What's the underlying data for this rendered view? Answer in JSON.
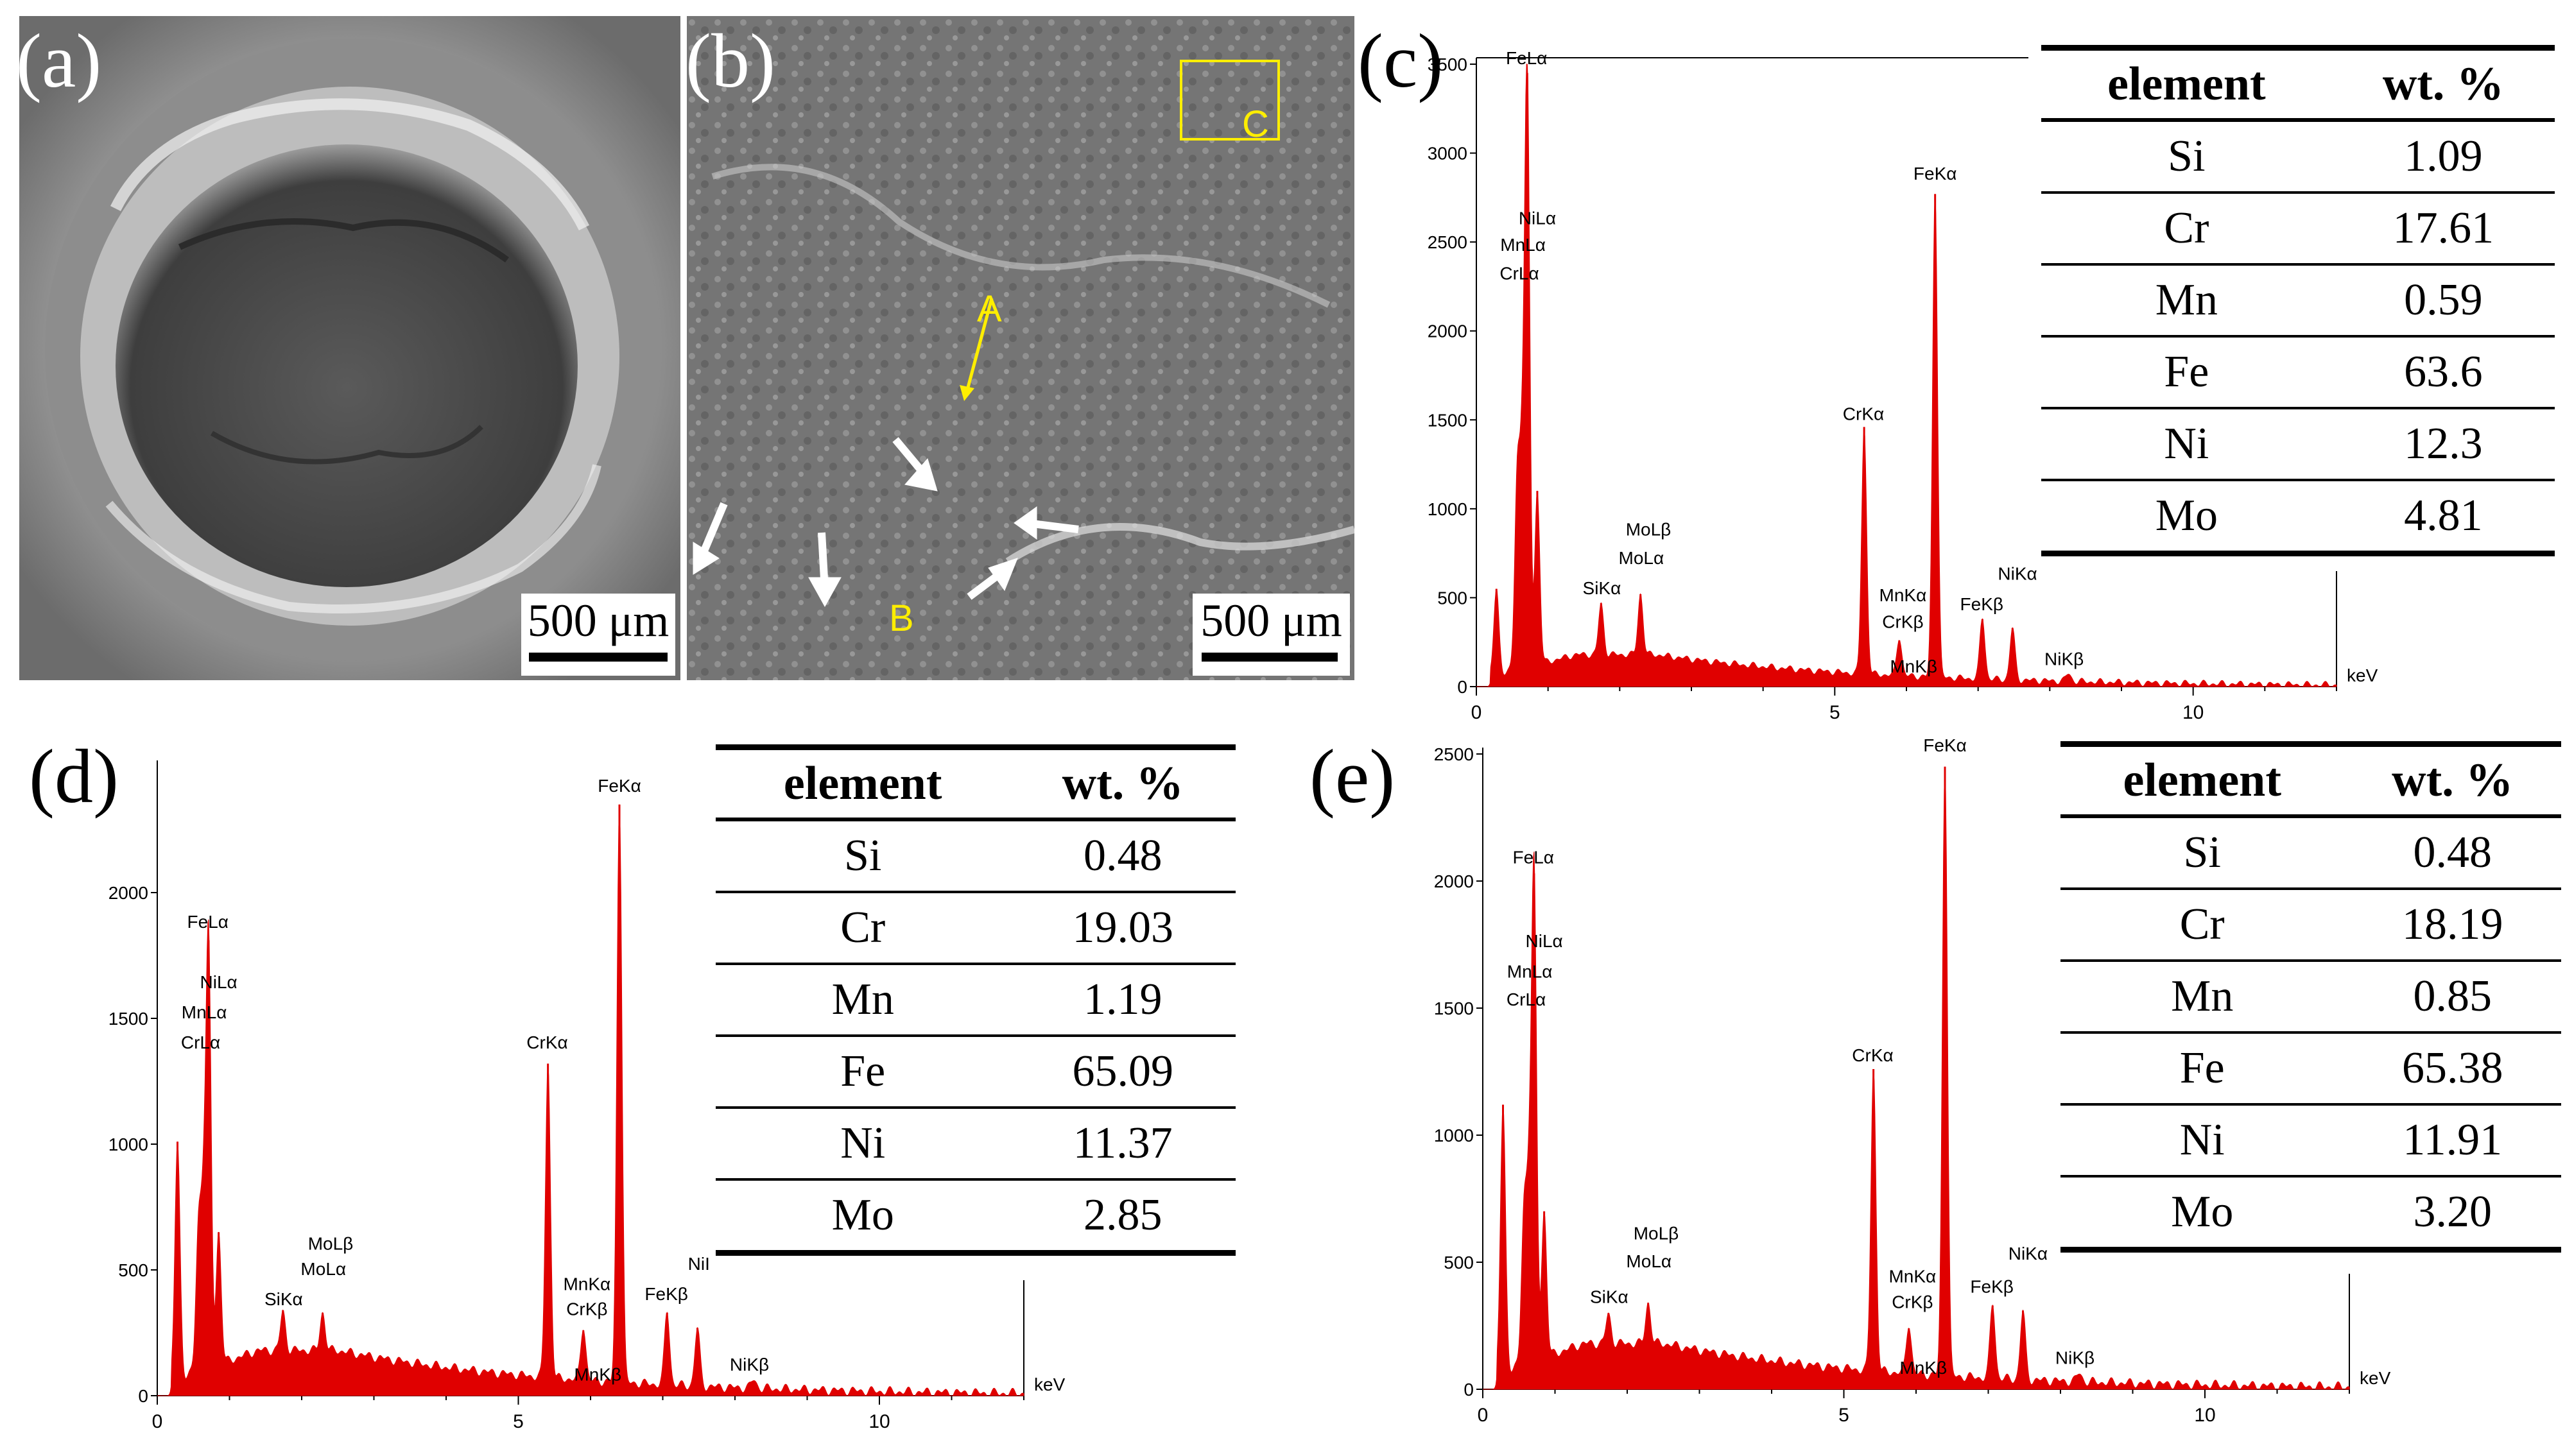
{
  "panels": {
    "a": {
      "letter": "(a)",
      "scale": "500 μm"
    },
    "b": {
      "letter": "(b)",
      "scale": "500 μm",
      "labels": {
        "A": "A",
        "B": "B",
        "C": "C"
      }
    },
    "c": {
      "letter": "(c)"
    },
    "d": {
      "letter": "(d)"
    },
    "e": {
      "letter": "(e)"
    }
  },
  "colors": {
    "spectrum": "#e00000",
    "annotation": "#ffee00",
    "axis": "#000000"
  },
  "tables": [
    {
      "header": {
        "element": "element",
        "wt": "wt. %"
      },
      "rows": [
        [
          "Si",
          "1.09"
        ],
        [
          "Cr",
          "17.61"
        ],
        [
          "Mn",
          "0.59"
        ],
        [
          "Fe",
          "63.6"
        ],
        [
          "Ni",
          "12.3"
        ],
        [
          "Mo",
          "4.81"
        ]
      ]
    },
    {
      "header": {
        "element": "element",
        "wt": "wt. %"
      },
      "rows": [
        [
          "Si",
          "0.48"
        ],
        [
          "Cr",
          "19.03"
        ],
        [
          "Mn",
          "1.19"
        ],
        [
          "Fe",
          "65.09"
        ],
        [
          "Ni",
          "11.37"
        ],
        [
          "Mo",
          "2.85"
        ]
      ]
    },
    {
      "header": {
        "element": "element",
        "wt": "wt. %"
      },
      "rows": [
        [
          "Si",
          "0.48"
        ],
        [
          "Cr",
          "18.19"
        ],
        [
          "Mn",
          "0.85"
        ],
        [
          "Fe",
          "65.38"
        ],
        [
          "Ni",
          "11.91"
        ],
        [
          "Mo",
          "3.20"
        ]
      ]
    }
  ],
  "chart_data": [
    {
      "type": "area",
      "panel": "c",
      "xlabel": "keV",
      "xlim": [
        0,
        12
      ],
      "ylim": [
        0,
        3500
      ],
      "xticks": [
        0,
        5,
        10
      ],
      "yticks": [
        0,
        500,
        1000,
        1500,
        2000,
        2500,
        3000,
        3500
      ],
      "peaks": [
        {
          "x": 0.28,
          "y": 550
        },
        {
          "x": 0.57,
          "y": 1150
        },
        {
          "x": 0.64,
          "y": 1150
        },
        {
          "x": 0.71,
          "y": 3450
        },
        {
          "x": 0.85,
          "y": 1100
        },
        {
          "x": 1.74,
          "y": 470
        },
        {
          "x": 2.29,
          "y": 520
        },
        {
          "x": 5.41,
          "y": 1460
        },
        {
          "x": 5.9,
          "y": 260
        },
        {
          "x": 6.4,
          "y": 2770
        },
        {
          "x": 7.06,
          "y": 380
        },
        {
          "x": 7.48,
          "y": 330
        },
        {
          "x": 8.26,
          "y": 70
        }
      ],
      "annotations": [
        {
          "text": "FeLα",
          "x": 0.7,
          "y": 3500
        },
        {
          "text": "NiLα",
          "x": 0.85,
          "y": 2600
        },
        {
          "text": "MnLα",
          "x": 0.65,
          "y": 2450
        },
        {
          "text": "CrLα",
          "x": 0.6,
          "y": 2290
        },
        {
          "text": "MoLβ",
          "x": 2.4,
          "y": 850
        },
        {
          "text": "MoLα",
          "x": 2.3,
          "y": 690
        },
        {
          "text": "SiKα",
          "x": 1.75,
          "y": 520
        },
        {
          "text": "CrKα",
          "x": 5.4,
          "y": 1500
        },
        {
          "text": "FeKα",
          "x": 6.4,
          "y": 2850
        },
        {
          "text": "MnKα",
          "x": 5.95,
          "y": 480
        },
        {
          "text": "CrKβ",
          "x": 5.95,
          "y": 330
        },
        {
          "text": "MnKβ",
          "x": 6.1,
          "y": 80
        },
        {
          "text": "FeKβ",
          "x": 7.05,
          "y": 430
        },
        {
          "text": "NiKα",
          "x": 7.55,
          "y": 600
        },
        {
          "text": "NiKβ",
          "x": 8.2,
          "y": 120
        }
      ]
    },
    {
      "type": "area",
      "panel": "d",
      "xlabel": "keV",
      "xlim": [
        0,
        12
      ],
      "ylim": [
        0,
        2500
      ],
      "xticks": [
        0,
        5,
        10
      ],
      "yticks": [
        0,
        500,
        1000,
        1500,
        2000
      ],
      "peaks": [
        {
          "x": 0.28,
          "y": 1010
        },
        {
          "x": 0.57,
          "y": 650
        },
        {
          "x": 0.64,
          "y": 700
        },
        {
          "x": 0.71,
          "y": 1810
        },
        {
          "x": 0.85,
          "y": 650
        },
        {
          "x": 1.74,
          "y": 340
        },
        {
          "x": 2.29,
          "y": 330
        },
        {
          "x": 5.41,
          "y": 1320
        },
        {
          "x": 5.9,
          "y": 260
        },
        {
          "x": 6.4,
          "y": 2350
        },
        {
          "x": 7.06,
          "y": 330
        },
        {
          "x": 7.48,
          "y": 270
        },
        {
          "x": 8.26,
          "y": 60
        }
      ],
      "annotations": [
        {
          "text": "FeLα",
          "x": 0.7,
          "y": 1860
        },
        {
          "text": "NiLα",
          "x": 0.85,
          "y": 1620
        },
        {
          "text": "MnLα",
          "x": 0.65,
          "y": 1500
        },
        {
          "text": "CrLα",
          "x": 0.6,
          "y": 1380
        },
        {
          "text": "MoLβ",
          "x": 2.4,
          "y": 580
        },
        {
          "text": "MoLα",
          "x": 2.3,
          "y": 480
        },
        {
          "text": "SiKα",
          "x": 1.75,
          "y": 360
        },
        {
          "text": "CrKα",
          "x": 5.4,
          "y": 1380
        },
        {
          "text": "FeKα",
          "x": 6.4,
          "y": 2400
        },
        {
          "text": "MnKα",
          "x": 5.95,
          "y": 420
        },
        {
          "text": "CrKβ",
          "x": 5.95,
          "y": 320
        },
        {
          "text": "MnKβ",
          "x": 6.1,
          "y": 60
        },
        {
          "text": "FeKβ",
          "x": 7.05,
          "y": 380
        },
        {
          "text": "NiI",
          "x": 7.5,
          "y": 500
        },
        {
          "text": "NiKβ",
          "x": 8.2,
          "y": 100
        }
      ]
    },
    {
      "type": "area",
      "panel": "e",
      "xlabel": "keV",
      "xlim": [
        0,
        12
      ],
      "ylim": [
        0,
        2500
      ],
      "xticks": [
        0,
        5,
        10
      ],
      "yticks": [
        0,
        500,
        1000,
        1500,
        2000,
        2500
      ],
      "peaks": [
        {
          "x": 0.28,
          "y": 1120
        },
        {
          "x": 0.57,
          "y": 680
        },
        {
          "x": 0.64,
          "y": 720
        },
        {
          "x": 0.71,
          "y": 2030
        },
        {
          "x": 0.85,
          "y": 700
        },
        {
          "x": 1.74,
          "y": 300
        },
        {
          "x": 2.29,
          "y": 340
        },
        {
          "x": 5.41,
          "y": 1260
        },
        {
          "x": 5.9,
          "y": 240
        },
        {
          "x": 6.4,
          "y": 2450
        },
        {
          "x": 7.06,
          "y": 330
        },
        {
          "x": 7.48,
          "y": 310
        },
        {
          "x": 8.26,
          "y": 60
        }
      ],
      "annotations": [
        {
          "text": "FeLα",
          "x": 0.7,
          "y": 2070
        },
        {
          "text": "NiLα",
          "x": 0.85,
          "y": 1740
        },
        {
          "text": "MnLα",
          "x": 0.65,
          "y": 1620
        },
        {
          "text": "CrLα",
          "x": 0.6,
          "y": 1510
        },
        {
          "text": "MoLβ",
          "x": 2.4,
          "y": 590
        },
        {
          "text": "MoLα",
          "x": 2.3,
          "y": 480
        },
        {
          "text": "SiKα",
          "x": 1.75,
          "y": 340
        },
        {
          "text": "CrKα",
          "x": 5.4,
          "y": 1290
        },
        {
          "text": "FeKα",
          "x": 6.4,
          "y": 2510
        },
        {
          "text": "MnKα",
          "x": 5.95,
          "y": 420
        },
        {
          "text": "CrKβ",
          "x": 5.95,
          "y": 320
        },
        {
          "text": "MnKβ",
          "x": 6.1,
          "y": 60
        },
        {
          "text": "FeKβ",
          "x": 7.05,
          "y": 380
        },
        {
          "text": "NiKα",
          "x": 7.55,
          "y": 510
        },
        {
          "text": "NiKβ",
          "x": 8.2,
          "y": 100
        }
      ]
    }
  ]
}
